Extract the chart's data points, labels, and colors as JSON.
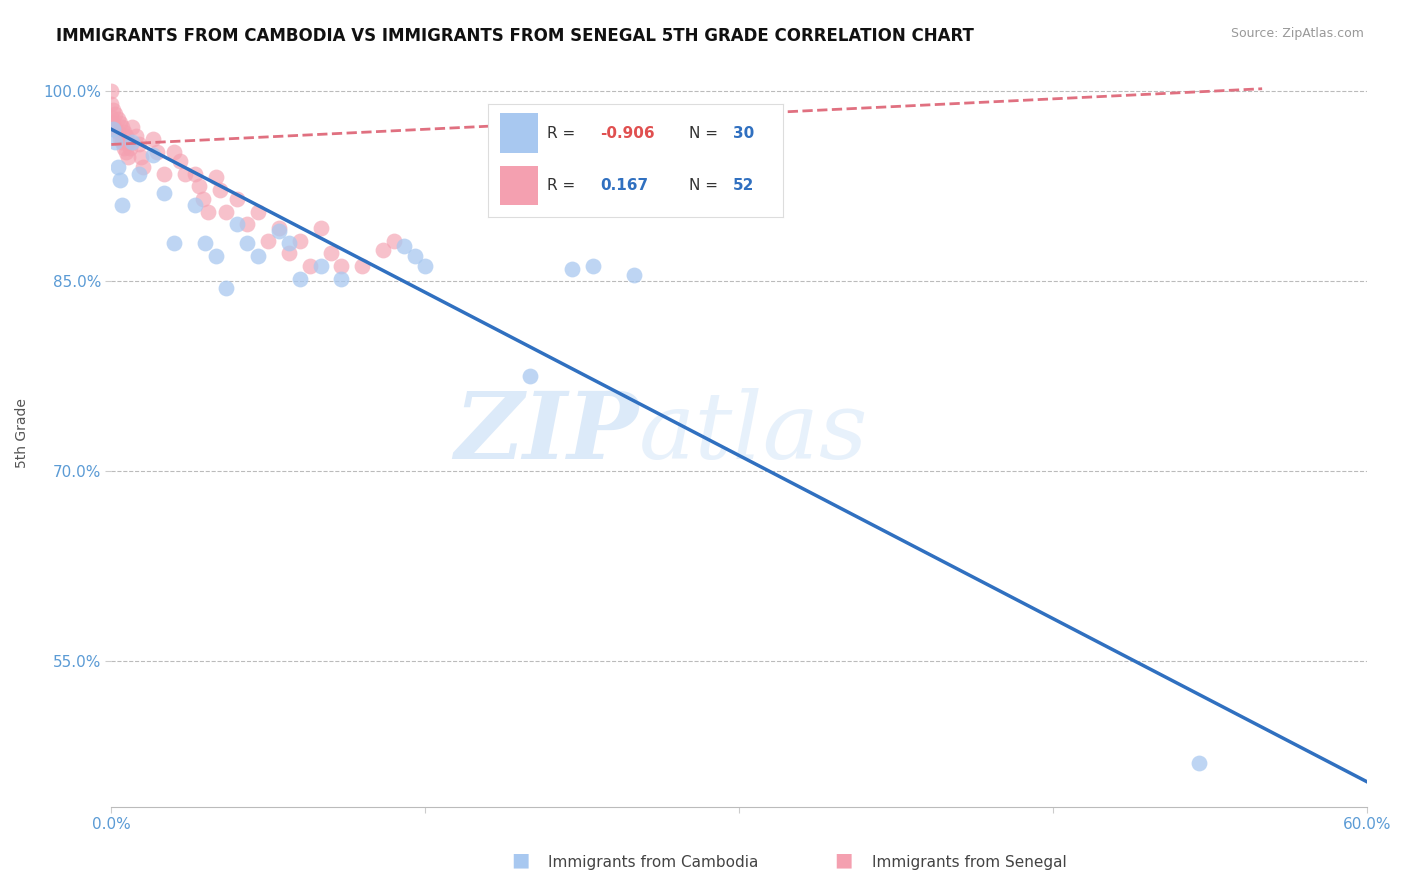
{
  "title": "IMMIGRANTS FROM CAMBODIA VS IMMIGRANTS FROM SENEGAL 5TH GRADE CORRELATION CHART",
  "source": "Source: ZipAtlas.com",
  "xlabel_cambodia": "Immigrants from Cambodia",
  "xlabel_senegal": "Immigrants from Senegal",
  "ylabel": "5th Grade",
  "watermark": "ZIPatlas",
  "xlim": [
    0.0,
    0.6
  ],
  "ylim": [
    0.435,
    1.025
  ],
  "xticks": [
    0.0,
    0.15,
    0.3,
    0.45,
    0.6
  ],
  "xtick_labels": [
    "0.0%",
    "",
    "",
    "",
    "60.0%"
  ],
  "yticks": [
    0.55,
    0.7,
    0.85,
    1.0
  ],
  "ytick_labels": [
    "55.0%",
    "70.0%",
    "85.0%",
    "100.0%"
  ],
  "legend_cambodia_R": "-0.906",
  "legend_cambodia_N": "30",
  "legend_senegal_R": "0.167",
  "legend_senegal_N": "52",
  "blue_color": "#A8C8F0",
  "pink_color": "#F4A0B0",
  "blue_line_color": "#3070C0",
  "pink_line_color": "#E07080",
  "grid_color": "#BBBBBB",
  "blue_dots_x": [
    0.001,
    0.002,
    0.003,
    0.004,
    0.005,
    0.01,
    0.013,
    0.02,
    0.025,
    0.03,
    0.04,
    0.045,
    0.05,
    0.055,
    0.06,
    0.065,
    0.07,
    0.08,
    0.085,
    0.09,
    0.1,
    0.11,
    0.14,
    0.145,
    0.15,
    0.2,
    0.22,
    0.23,
    0.25,
    0.52
  ],
  "blue_dots_y": [
    0.97,
    0.96,
    0.94,
    0.93,
    0.91,
    0.96,
    0.935,
    0.95,
    0.92,
    0.88,
    0.91,
    0.88,
    0.87,
    0.845,
    0.895,
    0.88,
    0.87,
    0.89,
    0.88,
    0.852,
    0.862,
    0.852,
    0.878,
    0.87,
    0.862,
    0.775,
    0.86,
    0.862,
    0.855,
    0.47
  ],
  "pink_dots_x": [
    0.0,
    0.0,
    0.0,
    0.001,
    0.001,
    0.002,
    0.002,
    0.003,
    0.003,
    0.004,
    0.004,
    0.005,
    0.005,
    0.006,
    0.006,
    0.007,
    0.007,
    0.008,
    0.008,
    0.009,
    0.01,
    0.012,
    0.013,
    0.014,
    0.015,
    0.02,
    0.022,
    0.025,
    0.03,
    0.033,
    0.035,
    0.04,
    0.042,
    0.044,
    0.046,
    0.05,
    0.052,
    0.055,
    0.06,
    0.065,
    0.07,
    0.075,
    0.08,
    0.085,
    0.09,
    0.095,
    0.1,
    0.105,
    0.11,
    0.12,
    0.13,
    0.135
  ],
  "pink_dots_y": [
    1.0,
    0.99,
    0.98,
    0.985,
    0.975,
    0.982,
    0.97,
    0.978,
    0.968,
    0.975,
    0.962,
    0.972,
    0.96,
    0.968,
    0.955,
    0.965,
    0.952,
    0.96,
    0.948,
    0.955,
    0.972,
    0.965,
    0.958,
    0.948,
    0.94,
    0.962,
    0.952,
    0.935,
    0.952,
    0.945,
    0.935,
    0.935,
    0.925,
    0.915,
    0.905,
    0.932,
    0.922,
    0.905,
    0.915,
    0.895,
    0.905,
    0.882,
    0.892,
    0.872,
    0.882,
    0.862,
    0.892,
    0.872,
    0.862,
    0.862,
    0.875,
    0.882
  ],
  "blue_trendline_x": [
    0.0,
    0.6
  ],
  "blue_trendline_y": [
    0.97,
    0.455
  ],
  "pink_trendline_x": [
    0.0,
    0.55
  ],
  "pink_trendline_y": [
    0.958,
    1.002
  ]
}
